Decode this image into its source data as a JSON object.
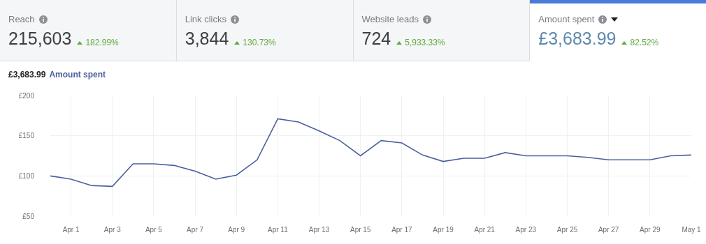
{
  "chart_data": [
    {
      "type": "other",
      "annotations": [
        "Reach",
        "215,603",
        "182.99%",
        "Link clicks",
        "3,844",
        "130.73%",
        "Website leads",
        "724",
        "5,933.33%",
        "Amount spent",
        "£3,683.99",
        "82.52%"
      ]
    },
    {
      "type": "line",
      "title": "£3,683.99",
      "grid": true,
      "x": [
        "--03-31",
        "--04-01",
        "--04-02",
        "--04-03",
        "--04-04",
        "--04-05",
        "--04-06",
        "--04-07",
        "--04-08",
        "--04-09",
        "--04-10",
        "--04-11",
        "--04-12",
        "--04-13",
        "--04-14",
        "--04-15",
        "--04-16",
        "--04-17",
        "--04-18",
        "--04-19",
        "--04-20",
        "--04-21",
        "--04-22",
        "--04-23",
        "--04-24",
        "--04-25",
        "--04-26",
        "--04-27",
        "--04-28",
        "--04-29",
        "--04-30",
        "--05-01"
      ],
      "series": [
        {
          "name": "Amount spent",
          "color": "#4b5f9e",
          "values": [
            100,
            96,
            88,
            87,
            115,
            115,
            113,
            106,
            96,
            101,
            120,
            171,
            167,
            156,
            144,
            125,
            144,
            141,
            126,
            118,
            122,
            122,
            129,
            125,
            125,
            125,
            123,
            120,
            120,
            120,
            125,
            126
          ]
        }
      ],
      "xlim": [
        "--03-31",
        "--05-01"
      ],
      "xticks": [
        {
          "value": "--04-01",
          "label": "Apr 1"
        },
        {
          "value": "--04-03",
          "label": "Apr 3"
        },
        {
          "value": "--04-05",
          "label": "Apr 5"
        },
        {
          "value": "--04-07",
          "label": "Apr 7"
        },
        {
          "value": "--04-09",
          "label": "Apr 9"
        },
        {
          "value": "--04-11",
          "label": "Apr 11"
        },
        {
          "value": "--04-13",
          "label": "Apr 13"
        },
        {
          "value": "--04-15",
          "label": "Apr 15"
        },
        {
          "value": "--04-17",
          "label": "Apr 17"
        },
        {
          "value": "--04-19",
          "label": "Apr 19"
        },
        {
          "value": "--04-21",
          "label": "Apr 21"
        },
        {
          "value": "--04-23",
          "label": "Apr 23"
        },
        {
          "value": "--04-25",
          "label": "Apr 25"
        },
        {
          "value": "--04-27",
          "label": "Apr 27"
        },
        {
          "value": "--04-29",
          "label": "Apr 29"
        },
        {
          "value": "--05-01",
          "label": "May 1"
        }
      ],
      "ylim": [
        50,
        200
      ],
      "yticks": [
        {
          "value": 50,
          "label": "£50"
        },
        {
          "value": 100,
          "label": "£100"
        },
        {
          "value": 150,
          "label": "£150"
        },
        {
          "value": 200,
          "label": "£200"
        }
      ]
    }
  ]
}
